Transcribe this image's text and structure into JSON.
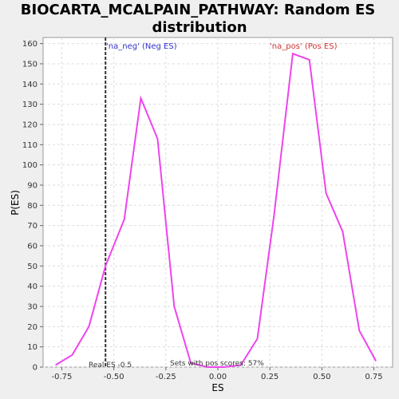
{
  "chart_data": {
    "type": "line",
    "title_lines": [
      "BIOCARTA_MCALPAIN_PATHWAY: Random ES",
      "distribution"
    ],
    "xlabel": "ES",
    "ylabel": "P(ES)",
    "xlim": [
      -0.84,
      0.84
    ],
    "ylim": [
      0,
      163
    ],
    "xticks": [
      -0.75,
      -0.5,
      -0.25,
      0.0,
      0.25,
      0.5,
      0.75
    ],
    "xtick_labels": [
      "-0.75",
      "-0.50",
      "-0.25",
      "0.00",
      "0.25",
      "0.50",
      "0.75"
    ],
    "yticks": [
      0,
      10,
      20,
      30,
      40,
      50,
      60,
      70,
      80,
      90,
      100,
      110,
      120,
      130,
      140,
      150,
      160
    ],
    "grid": true,
    "series": [
      {
        "color": "#ee44ee",
        "x": [
          -0.78,
          -0.7,
          -0.62,
          -0.54,
          -0.45,
          -0.37,
          -0.29,
          -0.21,
          -0.13,
          -0.05,
          0.03,
          0.11,
          0.19,
          0.27,
          0.36,
          0.44,
          0.52,
          0.6,
          0.68,
          0.76
        ],
        "y": [
          1,
          6,
          20,
          50,
          73,
          133,
          113,
          30,
          2,
          0,
          0,
          1,
          14,
          75,
          155,
          152,
          86,
          67,
          18,
          3
        ]
      }
    ],
    "real_es": -0.54,
    "annotations": {
      "neg_label": "'na_neg' (Neg ES)",
      "neg_color": "#3333cc",
      "pos_label": "'na_pos' (Pos ES)",
      "pos_color": "#cc3333",
      "real_es_label": "Real ES -0.5",
      "pos_scores_label": "Sets with pos scores: 57%"
    }
  }
}
